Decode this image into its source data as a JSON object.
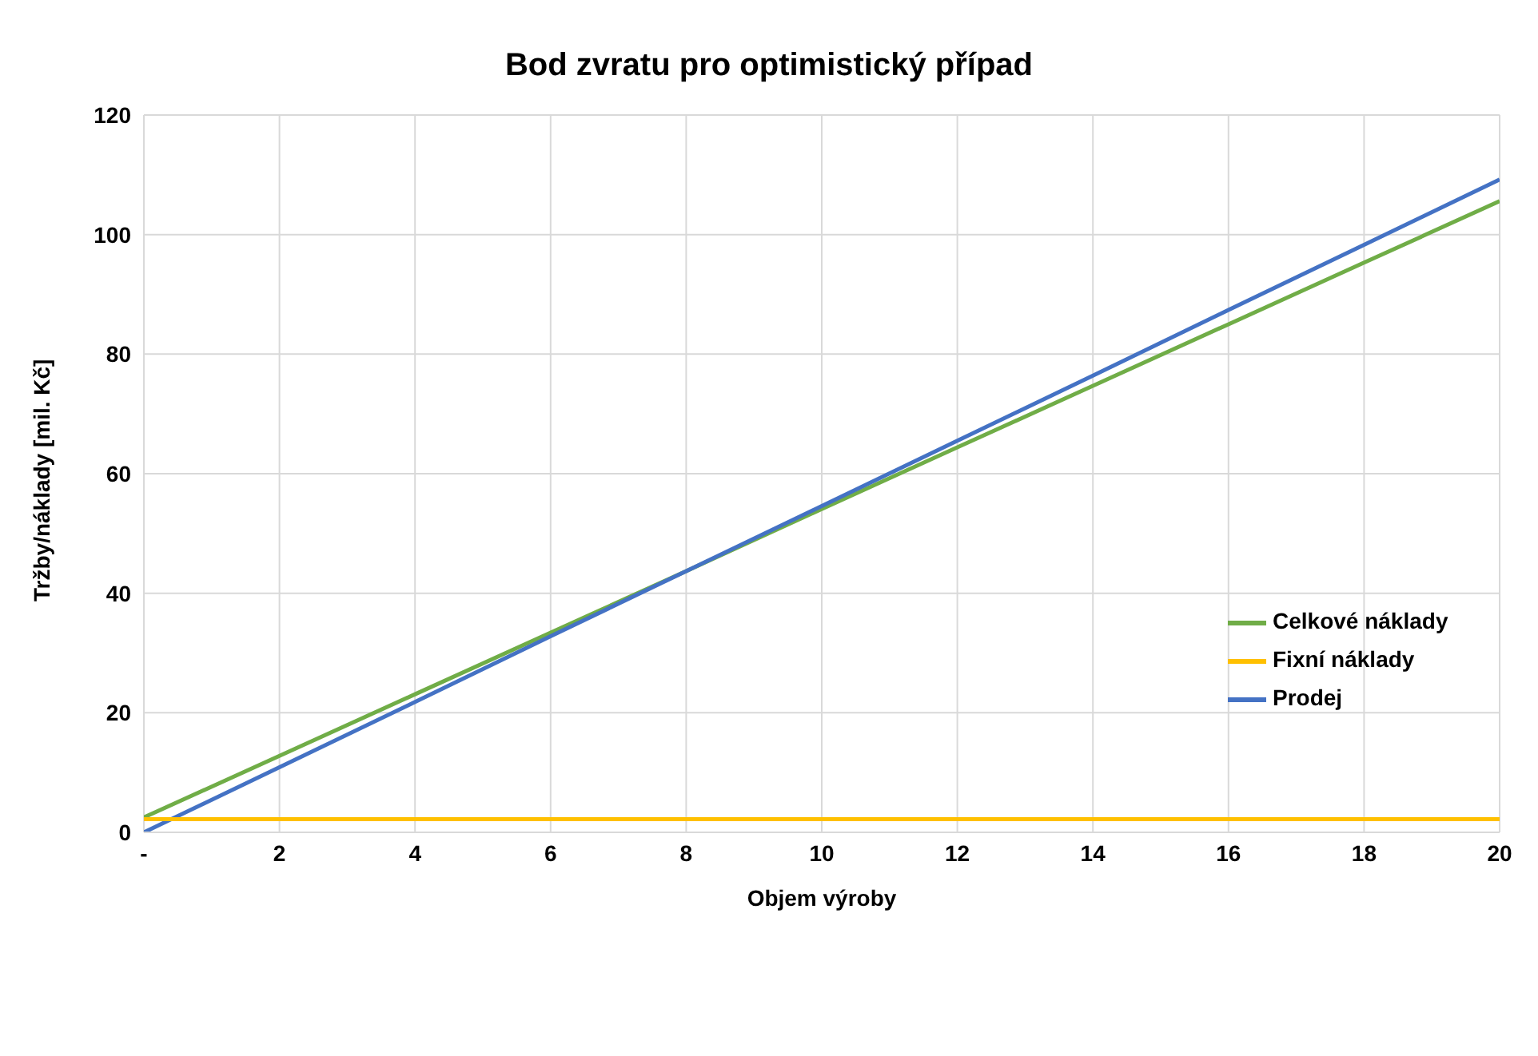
{
  "chart_data": {
    "type": "line",
    "title": "Bod zvratu pro optimistický případ",
    "xlabel": "Objem výroby",
    "ylabel": "Tržby/náklady [mil. Kč]",
    "x": [
      0,
      2,
      4,
      6,
      8,
      10,
      12,
      14,
      16,
      18,
      20
    ],
    "series": [
      {
        "name": "Celkové náklady",
        "color": "#70ad47",
        "values": [
          2.5,
          12.8,
          23.1,
          33.4,
          43.7,
          54.1,
          64.4,
          74.7,
          85.0,
          95.3,
          105.6
        ]
      },
      {
        "name": "Prodej",
        "color": "#4472c4",
        "values": [
          0,
          10.9,
          21.8,
          32.8,
          43.7,
          54.6,
          65.5,
          76.4,
          87.4,
          98.3,
          109.2
        ]
      },
      {
        "name": "Fixní náklady",
        "color": "#ffc000",
        "values": [
          2.2,
          2.2,
          2.2,
          2.2,
          2.2,
          2.2,
          2.2,
          2.2,
          2.2,
          2.2,
          2.2
        ]
      }
    ],
    "xlim": [
      0,
      20
    ],
    "xticks": [
      {
        "value": 0,
        "label": "-"
      },
      2,
      4,
      6,
      8,
      10,
      12,
      14,
      16,
      18,
      20
    ],
    "ylim": [
      0,
      120
    ],
    "yticks": [
      0,
      20,
      40,
      60,
      80,
      100,
      120
    ],
    "grid": true,
    "legend": "right",
    "marker": "none",
    "line_style": "solid"
  }
}
